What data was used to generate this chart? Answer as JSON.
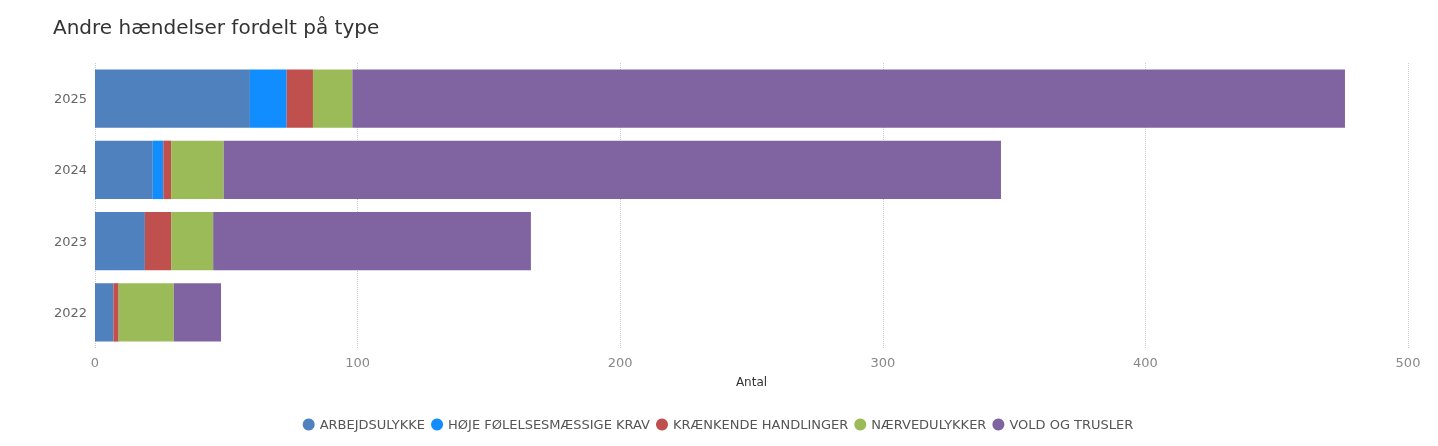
{
  "chart_data": {
    "type": "bar",
    "orientation": "horizontal",
    "stacked": true,
    "title": "Andre hændelser fordelt på type",
    "xlabel": "Antal",
    "categories": [
      "2025",
      "2024",
      "2023",
      "2022"
    ],
    "series": [
      {
        "name": "ARBEJDSULYKKE",
        "color": "#4e81bd",
        "values": [
          59,
          22,
          19,
          7
        ]
      },
      {
        "name": "HØJE FØLELSESMÆSSIGE KRAV",
        "color": "#118dff",
        "values": [
          14,
          4,
          0,
          0
        ]
      },
      {
        "name": "KRÆNKENDE HANDLINGER",
        "color": "#c0504d",
        "values": [
          10,
          3,
          10,
          2
        ]
      },
      {
        "name": "NÆRVEDULYKKER",
        "color": "#9bbb59",
        "values": [
          15,
          20,
          16,
          21
        ]
      },
      {
        "name": "VOLD OG TRUSLER",
        "color": "#8064a2",
        "values": [
          378,
          296,
          121,
          18
        ]
      }
    ],
    "xlim": [
      0,
      500
    ],
    "xticks": [
      0,
      100,
      200,
      300,
      400,
      500
    ],
    "grid": true,
    "legend": "bottom"
  }
}
